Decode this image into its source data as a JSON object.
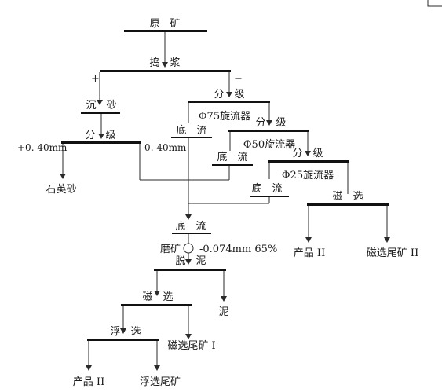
{
  "nodes": {
    "ore": "原　矿",
    "pulping": "捣　浆",
    "plus_sign": "+",
    "minus_sign": "−",
    "settling": "沉　砂",
    "classify1": "分　级",
    "classify2": "分　级",
    "underflow1": "底　流",
    "cyclone75": "Φ75旋流器",
    "classify3": "分　级",
    "cyclone50": "Φ50旋流器",
    "underflow2": "底　流",
    "classify4": "分　级",
    "cyclone25": "Φ25旋流器",
    "underflow3": "底　流",
    "mag_sep1": "磁　选",
    "plus040": "+0. 40mm",
    "minus040": "-0. 40mm",
    "quartz_sand": "石英砂",
    "product2_right": "产品 II",
    "mag_tail2": "磁选尾矿 II",
    "underflow_combined": "底　流",
    "grinding": "磨矿",
    "grind_spec": "-0.074mm  65%",
    "desliming": "脱　泥",
    "mud": "泥",
    "mag_sep2": "磁　选",
    "mag_tail1": "磁选尾矿 I",
    "flotation": "浮　选",
    "product2_left": "产品 II",
    "flot_tail": "浮选尾矿"
  }
}
